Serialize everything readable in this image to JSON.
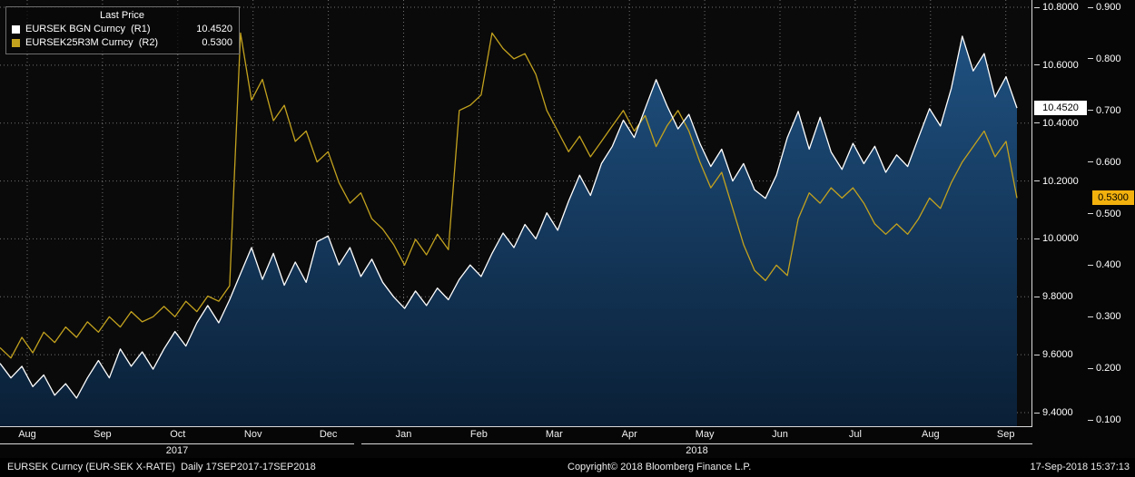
{
  "colors": {
    "background": "#0a0a0a",
    "eursek_line": "#ffffff",
    "rr_line": "#c3a21e",
    "area_top": "#1f5181",
    "area_bottom": "#0a1f36",
    "badge_r1_bg": "#ffffff",
    "badge_r2_bg": "#f2b10d",
    "badge_text": "#000000",
    "grid": "rgba(255,255,255,0.42)",
    "axis_line": "#d9d9d9"
  },
  "legend": {
    "title": "Last Price",
    "series": [
      {
        "swatch": "#ffffff",
        "label": "EURSEK BGN Curncy  (R1)",
        "value": "10.4520"
      },
      {
        "swatch": "#c3a21e",
        "label": "EURSEK25R3M Curncy  (R2)",
        "value": "0.5300"
      }
    ]
  },
  "chart_data": {
    "type": "line",
    "title": "Last Price",
    "x_tick_labels": [
      "Aug",
      "Sep",
      "Oct",
      "Nov",
      "Dec",
      "Jan",
      "Feb",
      "Mar",
      "Apr",
      "May",
      "Jun",
      "Jul",
      "Aug",
      "Sep"
    ],
    "year_labels": [
      "2017",
      "2018"
    ],
    "grid": "dotted",
    "legend_position": "top-left",
    "axes": {
      "r1": {
        "side": "right-inner",
        "min": 9.4,
        "max": 10.8,
        "last_price": "10.4520",
        "last_value": 10.452,
        "ticks": [
          {
            "label": "10.8000",
            "value": 10.8
          },
          {
            "label": "10.6000",
            "value": 10.6
          },
          {
            "label": "10.4000",
            "value": 10.4
          },
          {
            "label": "10.2000",
            "value": 10.2
          },
          {
            "label": "10.0000",
            "value": 10.0
          },
          {
            "label": "9.8000",
            "value": 9.8
          },
          {
            "label": "9.6000",
            "value": 9.6
          },
          {
            "label": "9.4000",
            "value": 9.4
          }
        ]
      },
      "r2": {
        "side": "right-outer",
        "min": 0.1,
        "max": 0.9,
        "last_price": "0.5300",
        "last_value": 0.53,
        "ticks": [
          {
            "label": "0.900",
            "value": 0.9
          },
          {
            "label": "0.800",
            "value": 0.8
          },
          {
            "label": "0.700",
            "value": 0.7
          },
          {
            "label": "0.600",
            "value": 0.6
          },
          {
            "label": "0.500",
            "value": 0.5
          },
          {
            "label": "0.400",
            "value": 0.4
          },
          {
            "label": "0.300",
            "value": 0.3
          },
          {
            "label": "0.200",
            "value": 0.2
          },
          {
            "label": "0.100",
            "value": 0.1
          }
        ]
      }
    },
    "series": [
      {
        "name": "EURSEK BGN Curncy",
        "scale": "r1",
        "color": "#ffffff",
        "fill": "blue-gradient-area",
        "values": [
          9.57,
          9.52,
          9.56,
          9.49,
          9.53,
          9.46,
          9.5,
          9.45,
          9.52,
          9.58,
          9.52,
          9.62,
          9.56,
          9.61,
          9.55,
          9.62,
          9.68,
          9.63,
          9.71,
          9.77,
          9.71,
          9.79,
          9.88,
          9.97,
          9.86,
          9.95,
          9.84,
          9.92,
          9.85,
          9.99,
          10.01,
          9.91,
          9.97,
          9.87,
          9.93,
          9.85,
          9.8,
          9.76,
          9.82,
          9.77,
          9.83,
          9.79,
          9.86,
          9.91,
          9.87,
          9.95,
          10.02,
          9.97,
          10.05,
          10.0,
          10.09,
          10.03,
          10.13,
          10.22,
          10.15,
          10.26,
          10.32,
          10.41,
          10.35,
          10.45,
          10.55,
          10.46,
          10.38,
          10.43,
          10.33,
          10.25,
          10.31,
          10.2,
          10.26,
          10.17,
          10.14,
          10.22,
          10.35,
          10.44,
          10.31,
          10.42,
          10.3,
          10.24,
          10.33,
          10.26,
          10.32,
          10.23,
          10.29,
          10.25,
          10.35,
          10.45,
          10.39,
          10.52,
          10.7,
          10.58,
          10.64,
          10.49,
          10.56,
          10.452
        ]
      },
      {
        "name": "EURSEK25R3M Curncy",
        "scale": "r2",
        "color": "#c3a21e",
        "fill": "none",
        "values": [
          0.24,
          0.22,
          0.26,
          0.23,
          0.27,
          0.25,
          0.28,
          0.26,
          0.29,
          0.27,
          0.3,
          0.28,
          0.31,
          0.29,
          0.3,
          0.32,
          0.3,
          0.33,
          0.31,
          0.34,
          0.33,
          0.36,
          0.85,
          0.72,
          0.76,
          0.68,
          0.71,
          0.64,
          0.66,
          0.6,
          0.62,
          0.56,
          0.52,
          0.54,
          0.49,
          0.47,
          0.44,
          0.4,
          0.45,
          0.42,
          0.46,
          0.43,
          0.7,
          0.71,
          0.73,
          0.85,
          0.82,
          0.8,
          0.81,
          0.77,
          0.7,
          0.66,
          0.62,
          0.65,
          0.61,
          0.64,
          0.67,
          0.7,
          0.66,
          0.69,
          0.63,
          0.67,
          0.7,
          0.66,
          0.6,
          0.55,
          0.58,
          0.51,
          0.44,
          0.39,
          0.37,
          0.4,
          0.38,
          0.49,
          0.54,
          0.52,
          0.55,
          0.53,
          0.55,
          0.52,
          0.48,
          0.46,
          0.48,
          0.46,
          0.49,
          0.53,
          0.51,
          0.56,
          0.6,
          0.63,
          0.66,
          0.61,
          0.64,
          0.53
        ]
      }
    ]
  },
  "footer": {
    "left": "EURSEK Curncy (EUR-SEK X-RATE)  Daily 17SEP2017-17SEP2018",
    "center": "Copyright© 2018 Bloomberg Finance L.P.",
    "right": "17-Sep-2018 15:37:13"
  }
}
